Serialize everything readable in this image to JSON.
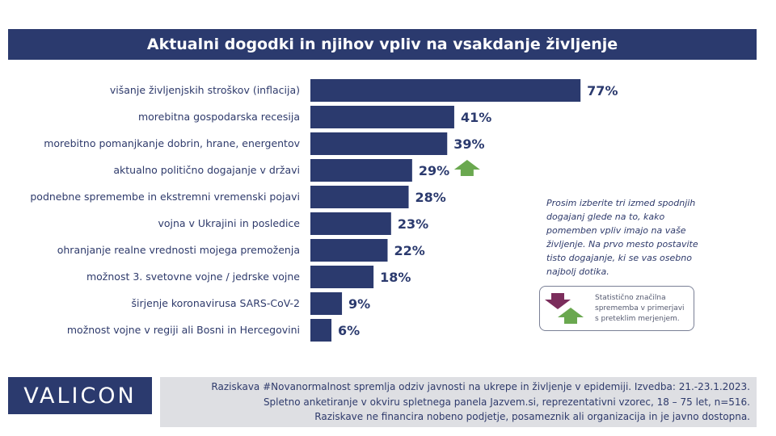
{
  "title": "Aktualni dogodki in njihov vpliv na vsakdanje življenje",
  "chart_data": {
    "type": "bar",
    "orientation": "horizontal",
    "categories": [
      "višanje življenjskih stroškov (inflacija)",
      "morebitna gospodarska recesija",
      "morebitno pomanjkanje dobrin, hrane, energentov",
      "aktualno politično dogajanje v državi",
      "podnebne spremembe in ekstremni vremenski pojavi",
      "vojna v Ukrajini in posledice",
      "ohranjanje realne vrednosti mojega premoženja",
      "možnost 3. svetovne vojne / jedrske vojne",
      "širjenje koronavirusa SARS-CoV-2",
      "možnost vojne v regiji ali Bosni in Hercegovini"
    ],
    "values": [
      77,
      41,
      39,
      29,
      28,
      23,
      22,
      18,
      9,
      6
    ],
    "value_labels": [
      "77%",
      "41%",
      "39%",
      "29%",
      "28%",
      "23%",
      "22%",
      "18%",
      "9%",
      "6%"
    ],
    "significant_increase": [
      false,
      false,
      false,
      true,
      false,
      false,
      false,
      false,
      false,
      false
    ],
    "xlim": [
      0,
      100
    ],
    "bar_color": "#2b3a6e",
    "up_arrow_color": "#6aa84f",
    "down_arrow_color": "#7b2d5c"
  },
  "note": "Prosim izberite tri izmed spodnjih dogajanj glede na to, kako pomemben vpliv imajo na vaše življenje. Na prvo mesto postavite tisto dogajanje, ki se vas osebno najbolj dotika.",
  "legend_text": "Statistično značilna sprememba v primerjavi s preteklim merjenjem.",
  "logo": "VALICON",
  "footer": [
    "Raziskava #Novanormalnost spremlja odziv javnosti na ukrepe in življenje v epidemiji. Izvedba: 21.-23.1.2023.",
    "Spletno anketiranje v okviru spletnega panela Jazvem.si, reprezentativni vzorec, 18 – 75 let, n=516.",
    "Raziskave ne financira nobeno podjetje, posameznik ali organizacija in je javno dostopna."
  ]
}
